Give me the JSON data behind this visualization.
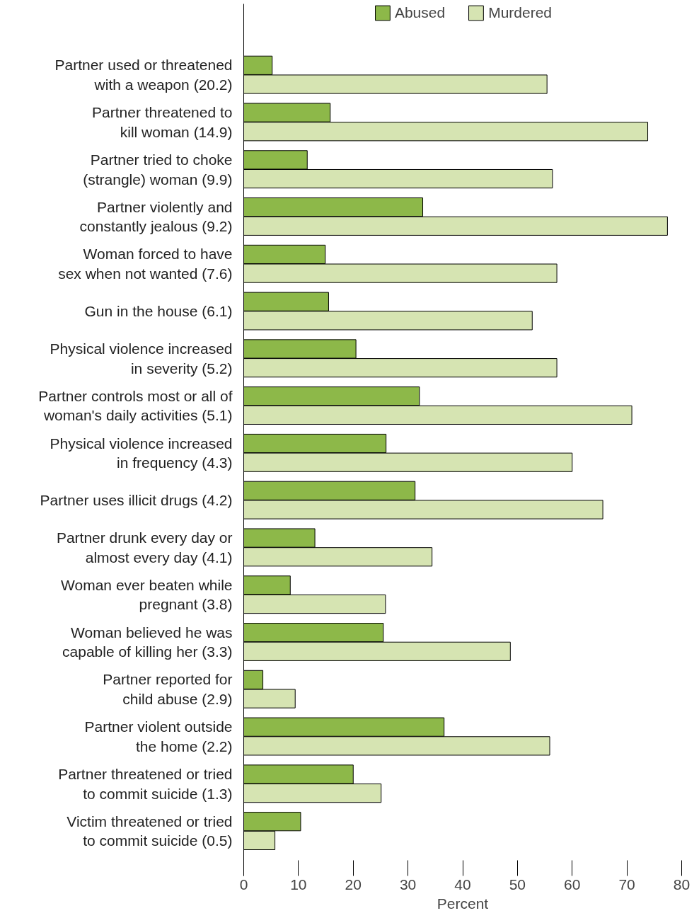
{
  "chart_data": {
    "type": "bar",
    "orientation": "horizontal",
    "xlabel": "Percent",
    "xlim": [
      0,
      80
    ],
    "xticks": [
      0,
      10,
      20,
      30,
      40,
      50,
      60,
      70,
      80
    ],
    "grid": false,
    "legend": "top",
    "categories": [
      "Partner used or threatened\nwith a weapon (20.2)",
      "Partner threatened to\nkill woman (14.9)",
      "Partner tried to choke\n(strangle) woman (9.9)",
      "Partner violently and\nconstantly jealous (9.2)",
      "Woman forced to have\nsex when not wanted (7.6)",
      "Gun in the house (6.1)",
      "Physical violence increased\nin severity (5.2)",
      "Partner controls most or all of\nwoman's daily activities (5.1)",
      "Physical violence increased\nin frequency (4.3)",
      "Partner uses illicit drugs (4.2)",
      "Partner drunk every day or\nalmost every day (4.1)",
      "Woman ever beaten while\npregnant (3.8)",
      "Woman believed he was\ncapable of killing her (3.3)",
      "Partner reported for\nchild abuse (2.9)",
      "Partner violent outside\nthe home (2.2)",
      "Partner threatened or tried\nto commit suicide (1.3)",
      "Victim threatened or tried\nto commit suicide (0.5)"
    ],
    "series": [
      {
        "name": "Abused",
        "color": "#8db849",
        "values": [
          5.2,
          15.8,
          11.6,
          32.7,
          14.9,
          15.5,
          20.5,
          32.1,
          26.0,
          31.3,
          13.0,
          8.5,
          25.5,
          3.5,
          36.6,
          20.0,
          10.4
        ]
      },
      {
        "name": "Murdered",
        "color": "#d6e4b2",
        "values": [
          55.4,
          73.8,
          56.4,
          77.4,
          57.2,
          52.7,
          57.2,
          70.9,
          60.0,
          65.6,
          34.4,
          25.9,
          48.7,
          9.4,
          55.9,
          25.1,
          5.7
        ]
      }
    ]
  }
}
